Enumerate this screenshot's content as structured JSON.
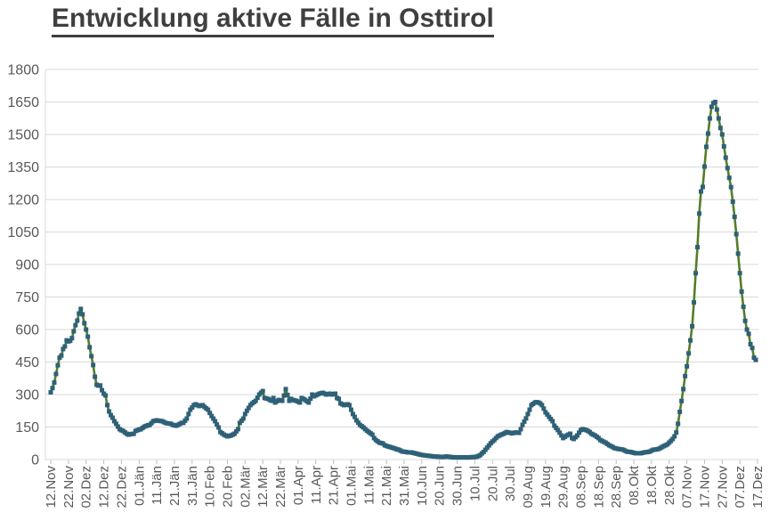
{
  "title": "Entwicklung aktive Fälle in Osttirol",
  "colors": {
    "title_text": "#3f3f3f",
    "axis_label_text": "#595959",
    "gridline": "#d9d9d9",
    "tick_mark": "#bfbfbf",
    "series_line": "#557d28",
    "series_marker": "#2e6177",
    "background": "#ffffff"
  },
  "chart_data": {
    "type": "line",
    "title": "Entwicklung aktive Fälle in Osttirol",
    "grid": true,
    "legend_position": "none",
    "marker_shape": "square",
    "x_axis": {
      "tick_labels": [
        "12.Nov",
        "22.Nov",
        "02.Dez",
        "12.Dez",
        "22.Dez",
        "01.Jän",
        "11.Jän",
        "21.Jän",
        "31.Jän",
        "10.Feb",
        "20.Feb",
        "02.Mär",
        "12.Mär",
        "22.Mär",
        "01.Apr",
        "11.Apr",
        "21.Apr",
        "01.Mai",
        "11.Mai",
        "21.Mai",
        "31.Mai",
        "10.Jun",
        "20.Jun",
        "30.Jun",
        "10.Jul",
        "20.Jul",
        "30.Jul",
        "09.Aug",
        "19.Aug",
        "29.Aug",
        "08.Sep",
        "18.Sep",
        "28.Sep",
        "08.Okt",
        "18.Okt",
        "28.Okt",
        "07.Nov",
        "17.Nov",
        "27.Nov",
        "07.Dez",
        "17.Dez"
      ],
      "tick_interval_days": 10,
      "label_rotation_deg": -90
    },
    "y_axis": {
      "min": 0,
      "max": 1800,
      "step": 150,
      "tick_labels": [
        "0",
        "150",
        "300",
        "450",
        "600",
        "750",
        "900",
        "1050",
        "1200",
        "1350",
        "1500",
        "1650",
        "1800"
      ]
    },
    "series": [
      {
        "point_interval": "daily",
        "first_point_label": "12.Nov",
        "last_point_label": "17.Dez",
        "values": [
          310,
          330,
          355,
          395,
          435,
          470,
          480,
          510,
          522,
          550,
          545,
          548,
          560,
          592,
          620,
          641,
          674,
          695,
          670,
          629,
          600,
          567,
          518,
          477,
          436,
          382,
          345,
          341,
          342,
          320,
          304,
          296,
          251,
          222,
          205,
          193,
          177,
          165,
          152,
          140,
          135,
          132,
          125,
          119,
          115,
          117,
          118,
          119,
          132,
          135,
          138,
          140,
          146,
          152,
          155,
          158,
          160,
          168,
          177,
          179,
          181,
          179,
          178,
          177,
          173,
          169,
          167,
          166,
          165,
          160,
          158,
          156,
          160,
          164,
          169,
          169,
          179,
          189,
          210,
          230,
          240,
          251,
          255,
          251,
          247,
          249,
          251,
          243,
          236,
          230,
          215,
          201,
          189,
          177,
          162,
          148,
          127,
          121,
          115,
          111,
          107,
          109,
          111,
          115,
          119,
          130,
          140,
          169,
          179,
          189,
          210,
          225,
          238,
          251,
          259,
          265,
          271,
          285,
          300,
          308,
          316,
          284,
          282,
          280,
          275,
          271,
          284,
          263,
          269,
          275,
          273,
          271,
          295,
          325,
          298,
          271,
          280,
          275,
          273,
          271,
          267,
          263,
          284,
          280,
          275,
          269,
          263,
          281,
          300,
          292,
          296,
          300,
          304,
          306,
          308,
          304,
          300,
          302,
          304,
          300,
          302,
          304,
          284,
          280,
          259,
          255,
          251,
          253,
          255,
          251,
          230,
          210,
          197,
          181,
          170,
          160,
          154,
          148,
          140,
          133,
          127,
          121,
          115,
          99,
          90,
          84,
          78,
          76,
          74,
          66,
          63,
          60,
          58,
          55,
          53,
          50,
          47,
          45,
          41,
          37,
          36,
          35,
          33,
          33,
          33,
          31,
          29,
          27,
          25,
          23,
          21,
          20,
          19,
          18,
          17,
          16,
          15,
          14,
          14,
          13,
          13,
          12,
          12,
          13,
          14,
          13,
          12,
          11,
          10,
          10,
          10,
          10,
          10,
          10,
          10,
          10,
          10,
          10,
          11,
          11,
          12,
          13,
          16,
          20,
          28,
          35,
          45,
          55,
          65,
          75,
          83,
          90,
          99,
          107,
          111,
          115,
          118,
          122,
          127,
          125,
          123,
          121,
          123,
          125,
          124,
          123,
          140,
          160,
          175,
          190,
          210,
          230,
          251,
          257,
          263,
          265,
          263,
          259,
          251,
          235,
          218,
          208,
          197,
          187,
          177,
          156,
          146,
          136,
          124,
          111,
          99,
          105,
          111,
          115,
          119,
          99,
          95,
          103,
          111,
          124,
          136,
          140,
          138,
          136,
          132,
          127,
          119,
          115,
          111,
          105,
          99,
          90,
          86,
          82,
          78,
          72,
          66,
          62,
          58,
          53,
          51,
          49,
          48,
          47,
          45,
          41,
          37,
          36,
          35,
          33,
          31,
          29,
          29,
          29,
          29,
          31,
          33,
          34,
          35,
          37,
          41,
          45,
          46,
          47,
          49,
          53,
          58,
          62,
          66,
          70,
          78,
          86,
          95,
          107,
          125,
          165,
          220,
          270,
          325,
          385,
          430,
          490,
          550,
          615,
          725,
          860,
          980,
          1135,
          1237,
          1258,
          1352,
          1443,
          1504,
          1574,
          1628,
          1645,
          1650,
          1615,
          1574,
          1530,
          1500,
          1445,
          1393,
          1345,
          1300,
          1257,
          1190,
          1120,
          1040,
          950,
          860,
          775,
          705,
          640,
          600,
          580,
          532,
          515,
          470,
          460
        ]
      }
    ]
  }
}
